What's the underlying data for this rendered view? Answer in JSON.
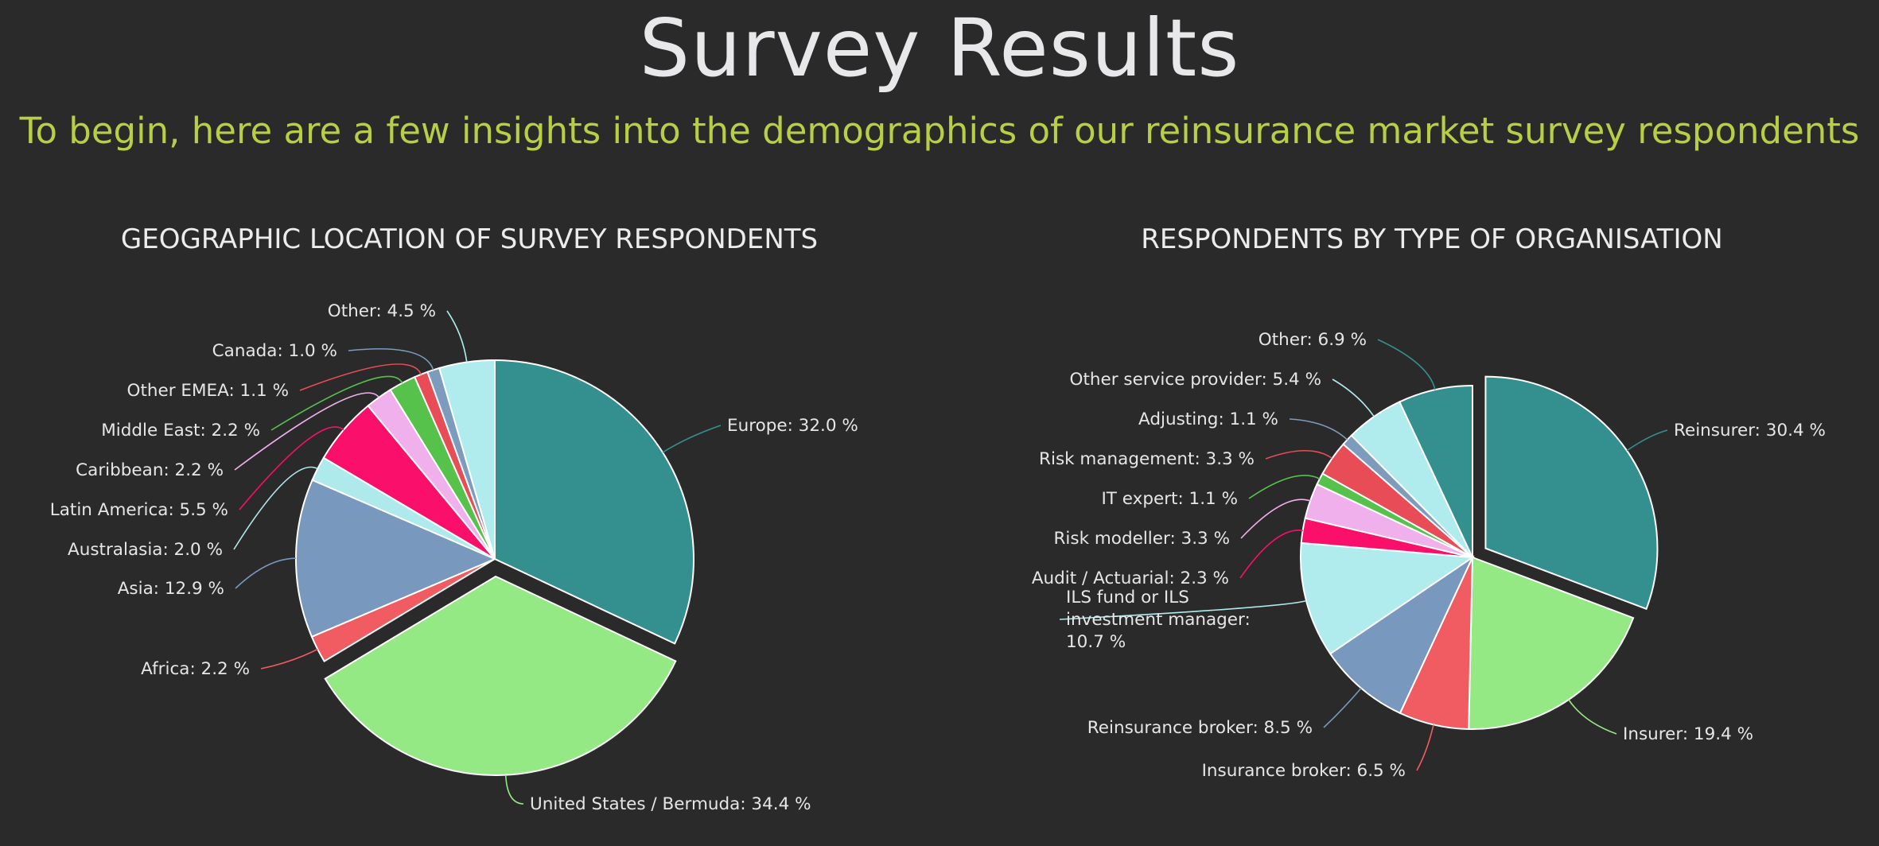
{
  "header": {
    "title": "Survey Results",
    "subtitle": "To begin, here are a few insights into the demographics of our reinsurance market survey respondents"
  },
  "chart_data": [
    {
      "type": "pie",
      "title": "GEOGRAPHIC LOCATION OF SURVEY RESPONDENTS",
      "slices": [
        {
          "label": "Europe: 32.0 %",
          "value": 32.0,
          "color": "#33908f",
          "exploded": false
        },
        {
          "label": "United States / Bermuda: 34.4 %",
          "value": 34.4,
          "color": "#94e984",
          "exploded": true
        },
        {
          "label": "Africa: 2.2 %",
          "value": 2.2,
          "color": "#f05c62",
          "exploded": false
        },
        {
          "label": "Asia: 12.9 %",
          "value": 12.9,
          "color": "#7899bd",
          "exploded": false
        },
        {
          "label": "Australasia: 2.0 %",
          "value": 2.0,
          "color": "#aee9eb",
          "exploded": false
        },
        {
          "label": "Latin America: 5.5 %",
          "value": 5.5,
          "color": "#fa0f6b",
          "exploded": false
        },
        {
          "label": "Caribbean: 2.2 %",
          "value": 2.2,
          "color": "#f0b0ec",
          "exploded": false
        },
        {
          "label": "Middle East: 2.2 %",
          "value": 2.2,
          "color": "#56c24b",
          "exploded": false
        },
        {
          "label": "Other EMEA: 1.1 %",
          "value": 1.1,
          "color": "#e84d57",
          "exploded": false
        },
        {
          "label": "Canada: 1.0 %",
          "value": 1.0,
          "color": "#7c9bbd",
          "exploded": false
        },
        {
          "label": "Other: 4.5 %",
          "value": 4.5,
          "color": "#b0ecee",
          "exploded": false
        }
      ]
    },
    {
      "type": "pie",
      "title": "RESPONDENTS BY TYPE OF ORGANISATION",
      "slices": [
        {
          "label": "Reinsurer: 30.4 %",
          "value": 30.4,
          "color": "#33908f",
          "exploded": true
        },
        {
          "label": "Insurer: 19.4 %",
          "value": 19.4,
          "color": "#94e984",
          "exploded": false
        },
        {
          "label": "Insurance broker: 6.5 %",
          "value": 6.5,
          "color": "#f05c62",
          "exploded": false
        },
        {
          "label": "Reinsurance broker: 8.5 %",
          "value": 8.5,
          "color": "#7899bd",
          "exploded": false
        },
        {
          "label": "ILS fund or ILS investment manager: 10.7 %",
          "value": 10.7,
          "color": "#b0ecee",
          "exploded": false
        },
        {
          "label": "Audit / Actuarial: 2.3 %",
          "value": 2.3,
          "color": "#fa0f6b",
          "exploded": false
        },
        {
          "label": "Risk modeller: 3.3 %",
          "value": 3.3,
          "color": "#f0b0ec",
          "exploded": false
        },
        {
          "label": "IT expert: 1.1 %",
          "value": 1.1,
          "color": "#56c24b",
          "exploded": false
        },
        {
          "label": "Risk management: 3.3 %",
          "value": 3.3,
          "color": "#e84d57",
          "exploded": false
        },
        {
          "label": "Adjusting: 1.1 %",
          "value": 1.1,
          "color": "#7c9bbd",
          "exploded": false
        },
        {
          "label": "Other service provider: 5.4 %",
          "value": 5.4,
          "color": "#b0ecee",
          "exploded": false
        },
        {
          "label": "Other: 6.9 %",
          "value": 6.9,
          "color": "#33908f",
          "exploded": false
        }
      ]
    }
  ]
}
